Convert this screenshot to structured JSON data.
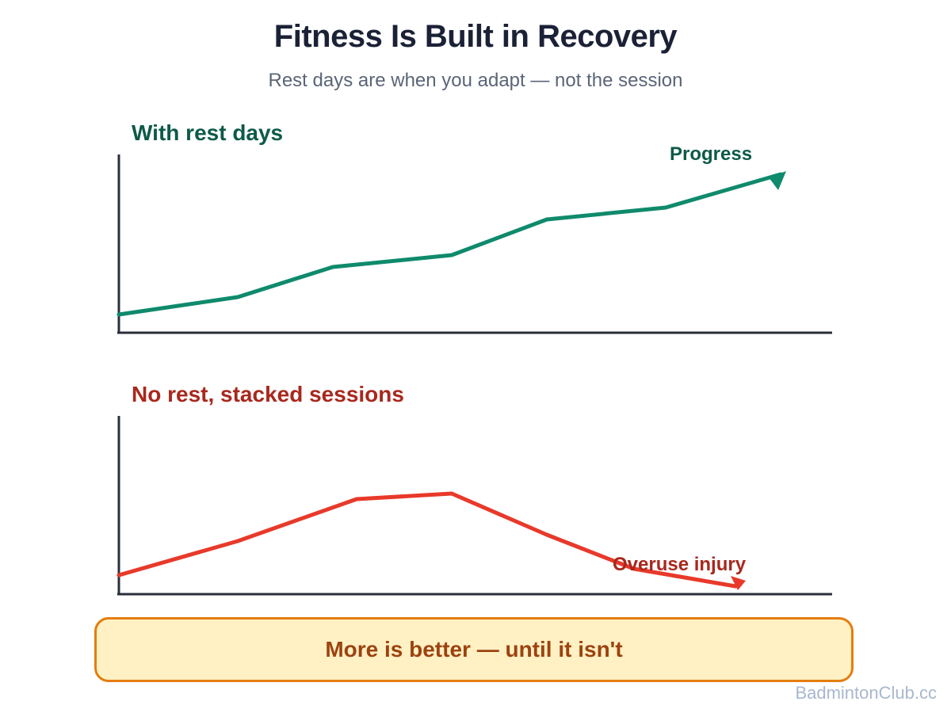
{
  "title": "Fitness Is Built in Recovery",
  "subtitle": "Rest days are when you adapt — not the session",
  "colors": {
    "progress_line": "#0f8a6c",
    "progress_heading": "#0d5a48",
    "injury_line": "#e8392a",
    "injury_heading": "#a8281d",
    "axis": "#2b2f3a",
    "callout_fill": "#fff1c4",
    "callout_border": "#e47d0f",
    "callout_text": "#9c4310"
  },
  "panels": {
    "with_rest": {
      "heading": "With rest days",
      "end_label": "Progress",
      "trend": "rising"
    },
    "no_rest": {
      "heading": "No rest, stacked sessions",
      "end_label": "Overuse injury",
      "trend": "rise then fall"
    }
  },
  "callout": {
    "text": "More is better — until it isn't"
  },
  "watermark": "BadmintonClub.cc"
}
